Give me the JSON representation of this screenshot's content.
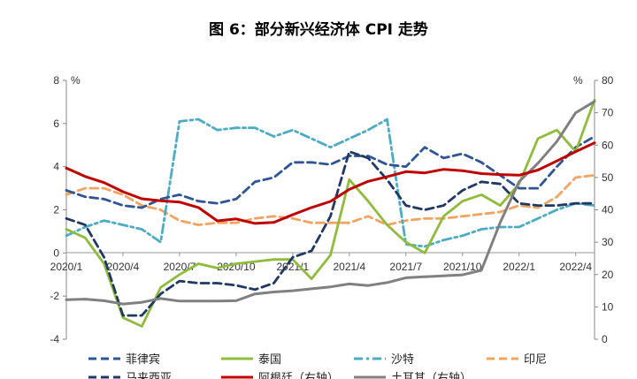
{
  "chart_data": {
    "type": "line",
    "title": "图 6：部分新兴经济体 CPI 走势",
    "ylabel_left": "%",
    "ylabel_right": "%",
    "ylim_left": [
      -4,
      8
    ],
    "ylim_right": [
      0,
      80
    ],
    "yticks_left": [
      "-4",
      "-2",
      "0",
      "2",
      "4",
      "6",
      "8"
    ],
    "yticks_right": [
      "0",
      "10",
      "20",
      "30",
      "40",
      "50",
      "60",
      "70",
      "80"
    ],
    "x": [
      "2020/1",
      "2020/2",
      "2020/3",
      "2020/4",
      "2020/5",
      "2020/6",
      "2020/7",
      "2020/8",
      "2020/9",
      "2020/10",
      "2020/11",
      "2020/12",
      "2021/1",
      "2021/2",
      "2021/3",
      "2021/4",
      "2021/5",
      "2021/6",
      "2021/7",
      "2021/8",
      "2021/9",
      "2021/10",
      "2021/11",
      "2021/12",
      "2022/1",
      "2022/2",
      "2022/3",
      "2022/4",
      "2022/5"
    ],
    "xtick_labels": [
      "2020/1",
      "2020/4",
      "2020/7",
      "2020/10",
      "2021/1",
      "2021/4",
      "2021/7",
      "2021/10",
      "2022/1",
      "2022/4"
    ],
    "series": [
      {
        "name": "菲律宾",
        "axis": "left",
        "color": "#2f5597",
        "dash": "dash",
        "values": [
          2.9,
          2.6,
          2.5,
          2.2,
          2.1,
          2.5,
          2.7,
          2.4,
          2.3,
          2.5,
          3.3,
          3.5,
          4.2,
          4.2,
          4.1,
          4.5,
          4.5,
          4.1,
          4.0,
          4.9,
          4.4,
          4.6,
          4.2,
          3.6,
          3.0,
          3.0,
          4.0,
          4.9,
          5.4
        ]
      },
      {
        "name": "泰国",
        "axis": "left",
        "color": "#8fbc3a",
        "dash": "solid",
        "values": [
          1.1,
          0.7,
          -0.5,
          -3.0,
          -3.4,
          -1.6,
          -1.0,
          -0.5,
          -0.7,
          -0.5,
          -0.4,
          -0.3,
          -0.3,
          -1.2,
          -0.1,
          3.4,
          2.4,
          1.3,
          0.5,
          0.0,
          1.7,
          2.4,
          2.7,
          2.2,
          3.2,
          5.3,
          5.7,
          4.7,
          7.1
        ]
      },
      {
        "name": "沙特",
        "axis": "left",
        "color": "#4bacc6",
        "dash": "dashdot",
        "values": [
          0.8,
          1.2,
          1.5,
          1.3,
          1.1,
          0.5,
          6.1,
          6.2,
          5.7,
          5.8,
          5.8,
          5.4,
          5.7,
          5.3,
          4.9,
          5.3,
          5.7,
          6.2,
          0.4,
          0.3,
          0.6,
          0.8,
          1.1,
          1.2,
          1.2,
          1.6,
          2.0,
          2.3,
          2.2
        ]
      },
      {
        "name": "印尼",
        "axis": "left",
        "color": "#f4a460",
        "dash": "dash",
        "values": [
          2.7,
          3.0,
          3.0,
          2.7,
          2.2,
          2.0,
          1.5,
          1.3,
          1.4,
          1.4,
          1.6,
          1.7,
          1.6,
          1.4,
          1.4,
          1.4,
          1.7,
          1.3,
          1.5,
          1.6,
          1.6,
          1.7,
          1.8,
          1.9,
          2.2,
          2.1,
          2.6,
          3.5,
          3.6
        ]
      },
      {
        "name": "马来西亚",
        "axis": "left",
        "color": "#1f3864",
        "dash": "dash",
        "values": [
          1.6,
          1.3,
          -0.2,
          -2.9,
          -2.9,
          -1.9,
          -1.3,
          -1.4,
          -1.4,
          -1.5,
          -1.7,
          -1.4,
          -0.2,
          0.1,
          1.7,
          4.7,
          4.4,
          3.4,
          2.2,
          2.0,
          2.2,
          2.9,
          3.3,
          3.2,
          2.3,
          2.2,
          2.2,
          2.3,
          2.3
        ]
      },
      {
        "name": "阿根廷（右轴）",
        "axis": "right",
        "color": "#c00000",
        "dash": "solid",
        "values": [
          52.9,
          50.3,
          48.4,
          45.6,
          43.4,
          42.8,
          42.4,
          40.7,
          36.6,
          37.2,
          35.8,
          36.1,
          38.5,
          40.7,
          42.6,
          46.3,
          48.8,
          50.2,
          51.8,
          51.4,
          52.5,
          52.1,
          51.2,
          50.9,
          50.7,
          52.3,
          55.1,
          58.0,
          60.7
        ]
      },
      {
        "name": "土耳其（右轴）",
        "axis": "right",
        "color": "#808080",
        "dash": "solid",
        "values": [
          12.2,
          12.4,
          11.9,
          10.9,
          11.4,
          12.6,
          11.8,
          11.8,
          11.8,
          11.9,
          14.0,
          14.6,
          15.0,
          15.6,
          16.2,
          17.1,
          16.6,
          17.5,
          19.0,
          19.3,
          19.6,
          19.9,
          21.3,
          36.1,
          48.7,
          54.4,
          61.1,
          70.0,
          73.5
        ]
      }
    ]
  }
}
